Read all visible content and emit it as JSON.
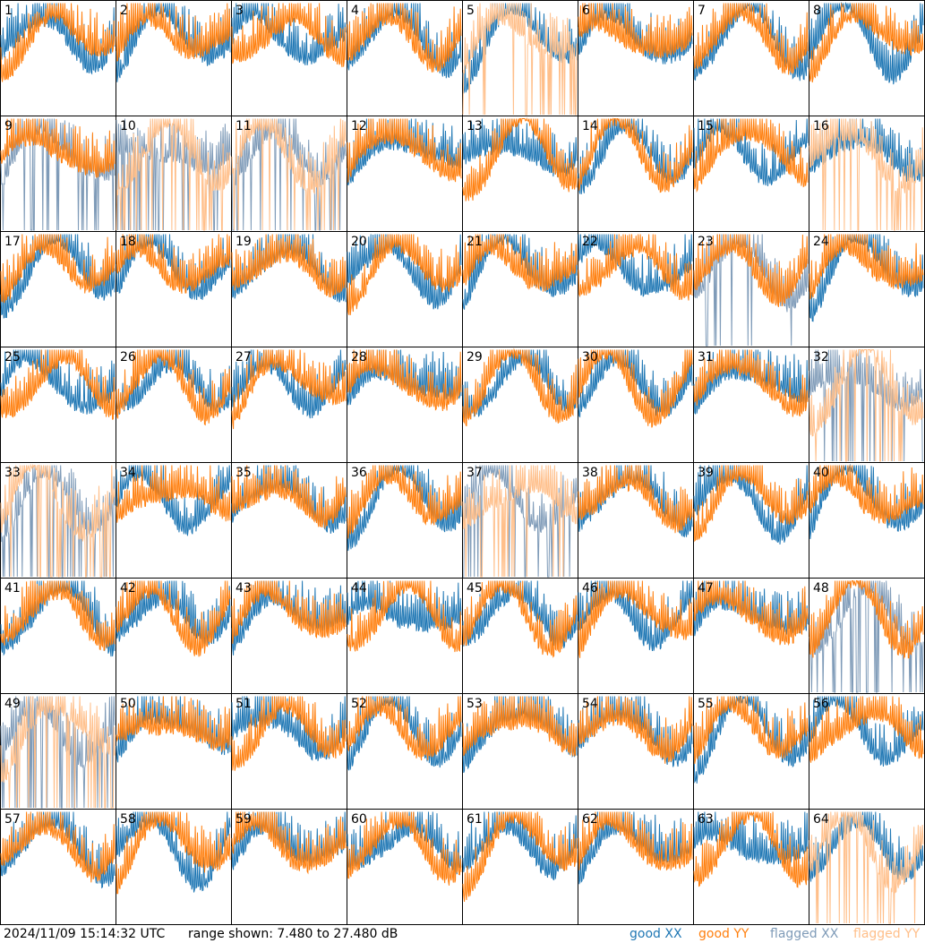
{
  "panels": [
    {
      "label": "1",
      "xx_flagged": false,
      "yy_flagged": false
    },
    {
      "label": "2",
      "xx_flagged": false,
      "yy_flagged": false
    },
    {
      "label": "3",
      "xx_flagged": false,
      "yy_flagged": false
    },
    {
      "label": "4",
      "xx_flagged": false,
      "yy_flagged": false
    },
    {
      "label": "5",
      "xx_flagged": false,
      "yy_flagged": true
    },
    {
      "label": "6",
      "xx_flagged": false,
      "yy_flagged": false
    },
    {
      "label": "7",
      "xx_flagged": false,
      "yy_flagged": false
    },
    {
      "label": "8",
      "xx_flagged": false,
      "yy_flagged": false
    },
    {
      "label": "9",
      "xx_flagged": true,
      "yy_flagged": false
    },
    {
      "label": "10",
      "xx_flagged": true,
      "yy_flagged": true
    },
    {
      "label": "11",
      "xx_flagged": true,
      "yy_flagged": true
    },
    {
      "label": "12",
      "xx_flagged": false,
      "yy_flagged": false
    },
    {
      "label": "13",
      "xx_flagged": false,
      "yy_flagged": false
    },
    {
      "label": "14",
      "xx_flagged": false,
      "yy_flagged": false
    },
    {
      "label": "15",
      "xx_flagged": false,
      "yy_flagged": false
    },
    {
      "label": "16",
      "xx_flagged": false,
      "yy_flagged": true
    },
    {
      "label": "17",
      "xx_flagged": false,
      "yy_flagged": false
    },
    {
      "label": "18",
      "xx_flagged": false,
      "yy_flagged": false
    },
    {
      "label": "19",
      "xx_flagged": false,
      "yy_flagged": false
    },
    {
      "label": "20",
      "xx_flagged": false,
      "yy_flagged": false
    },
    {
      "label": "21",
      "xx_flagged": false,
      "yy_flagged": false
    },
    {
      "label": "22",
      "xx_flagged": false,
      "yy_flagged": false
    },
    {
      "label": "23",
      "xx_flagged": true,
      "yy_flagged": false
    },
    {
      "label": "24",
      "xx_flagged": false,
      "yy_flagged": false
    },
    {
      "label": "25",
      "xx_flagged": false,
      "yy_flagged": false
    },
    {
      "label": "26",
      "xx_flagged": false,
      "yy_flagged": false
    },
    {
      "label": "27",
      "xx_flagged": false,
      "yy_flagged": false
    },
    {
      "label": "28",
      "xx_flagged": false,
      "yy_flagged": false
    },
    {
      "label": "29",
      "xx_flagged": false,
      "yy_flagged": false
    },
    {
      "label": "30",
      "xx_flagged": false,
      "yy_flagged": false
    },
    {
      "label": "31",
      "xx_flagged": false,
      "yy_flagged": false
    },
    {
      "label": "32",
      "xx_flagged": true,
      "yy_flagged": true
    },
    {
      "label": "33",
      "xx_flagged": true,
      "yy_flagged": true
    },
    {
      "label": "34",
      "xx_flagged": false,
      "yy_flagged": false
    },
    {
      "label": "35",
      "xx_flagged": false,
      "yy_flagged": false
    },
    {
      "label": "36",
      "xx_flagged": false,
      "yy_flagged": false
    },
    {
      "label": "37",
      "xx_flagged": true,
      "yy_flagged": true
    },
    {
      "label": "38",
      "xx_flagged": false,
      "yy_flagged": false
    },
    {
      "label": "39",
      "xx_flagged": false,
      "yy_flagged": false
    },
    {
      "label": "40",
      "xx_flagged": false,
      "yy_flagged": false
    },
    {
      "label": "41",
      "xx_flagged": false,
      "yy_flagged": false
    },
    {
      "label": "42",
      "xx_flagged": false,
      "yy_flagged": false
    },
    {
      "label": "43",
      "xx_flagged": false,
      "yy_flagged": false
    },
    {
      "label": "44",
      "xx_flagged": false,
      "yy_flagged": false
    },
    {
      "label": "45",
      "xx_flagged": false,
      "yy_flagged": false
    },
    {
      "label": "46",
      "xx_flagged": false,
      "yy_flagged": false
    },
    {
      "label": "47",
      "xx_flagged": false,
      "yy_flagged": false
    },
    {
      "label": "48",
      "xx_flagged": true,
      "yy_flagged": false
    },
    {
      "label": "49",
      "xx_flagged": true,
      "yy_flagged": true
    },
    {
      "label": "50",
      "xx_flagged": false,
      "yy_flagged": false
    },
    {
      "label": "51",
      "xx_flagged": false,
      "yy_flagged": false
    },
    {
      "label": "52",
      "xx_flagged": false,
      "yy_flagged": false
    },
    {
      "label": "53",
      "xx_flagged": false,
      "yy_flagged": false
    },
    {
      "label": "54",
      "xx_flagged": false,
      "yy_flagged": false
    },
    {
      "label": "55",
      "xx_flagged": false,
      "yy_flagged": false
    },
    {
      "label": "56",
      "xx_flagged": false,
      "yy_flagged": false
    },
    {
      "label": "57",
      "xx_flagged": false,
      "yy_flagged": false
    },
    {
      "label": "58",
      "xx_flagged": false,
      "yy_flagged": false
    },
    {
      "label": "59",
      "xx_flagged": false,
      "yy_flagged": false
    },
    {
      "label": "60",
      "xx_flagged": false,
      "yy_flagged": false
    },
    {
      "label": "61",
      "xx_flagged": false,
      "yy_flagged": false
    },
    {
      "label": "62",
      "xx_flagged": false,
      "yy_flagged": false
    },
    {
      "label": "63",
      "xx_flagged": false,
      "yy_flagged": false
    },
    {
      "label": "64",
      "xx_flagged": false,
      "yy_flagged": true
    }
  ],
  "footer": {
    "timestamp": "2024/11/09 15:14:32 UTC",
    "range": "range shown: 7.480 to 27.480 dB",
    "legend": [
      {
        "label": "good XX",
        "color": "#1f77b4"
      },
      {
        "label": "good YY",
        "color": "#ff7f0e"
      },
      {
        "label": "flagged XX",
        "color": "#7f9bb8"
      },
      {
        "label": "flagged YY",
        "color": "#ffbf8a"
      }
    ]
  }
}
